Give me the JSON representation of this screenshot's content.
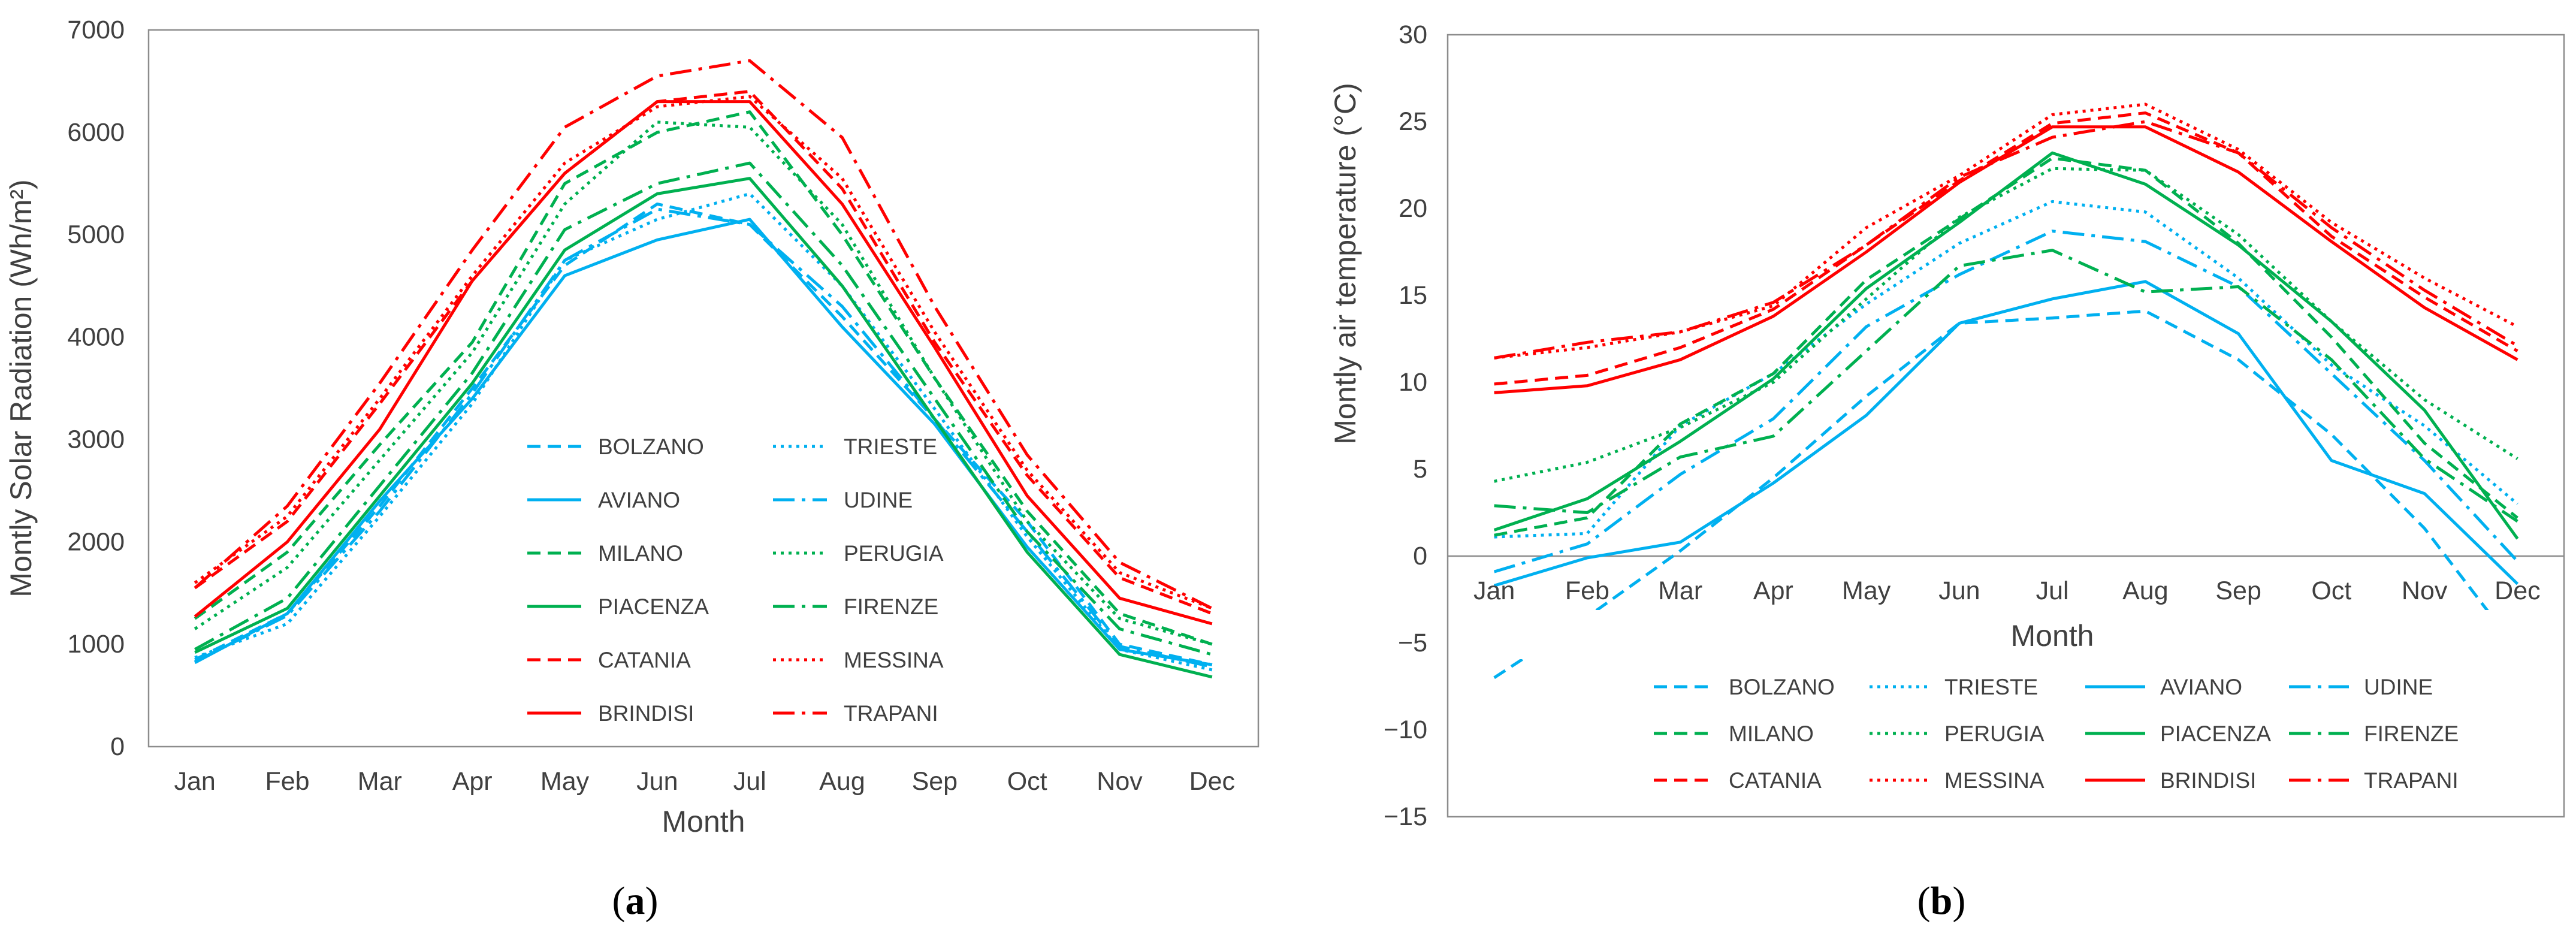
{
  "chart_data": [
    {
      "type": "line",
      "id": "a",
      "panel_label": "(a)",
      "ylabel": "Montly Solar Radiation (Wh/m²)",
      "xlabel": "Month",
      "ylim": [
        0,
        7000
      ],
      "yticks": [
        0,
        1000,
        2000,
        3000,
        4000,
        5000,
        6000,
        7000
      ],
      "categories": [
        "Jan",
        "Feb",
        "Mar",
        "Apr",
        "May",
        "Jun",
        "Jul",
        "Aug",
        "Sep",
        "Oct",
        "Nov",
        "Dec"
      ],
      "grid": false,
      "legend_position": "center-bottom",
      "series": [
        {
          "name": "BOLZANO",
          "color": "#00B0F0",
          "dash": "dashed",
          "values": [
            850,
            1300,
            2350,
            3500,
            4700,
            5300,
            5100,
            4200,
            3200,
            2200,
            1000,
            800
          ]
        },
        {
          "name": "TRIESTE",
          "color": "#00B0F0",
          "dash": "dotted",
          "values": [
            870,
            1200,
            2250,
            3350,
            4750,
            5150,
            5400,
            4500,
            3300,
            2050,
            950,
            750
          ]
        },
        {
          "name": "AVIANO",
          "color": "#00B0F0",
          "dash": "solid",
          "values": [
            820,
            1300,
            2400,
            3400,
            4600,
            4950,
            5150,
            4100,
            3150,
            1950,
            950,
            800
          ]
        },
        {
          "name": "UDINE",
          "color": "#00B0F0",
          "dash": "dashdot",
          "values": [
            830,
            1280,
            2300,
            3450,
            4750,
            5250,
            5100,
            4300,
            3200,
            2100,
            980,
            780
          ]
        },
        {
          "name": "MILANO",
          "color": "#00B050",
          "dash": "dashed",
          "values": [
            1250,
            1900,
            2950,
            3950,
            5500,
            6000,
            6200,
            5000,
            3600,
            2300,
            1300,
            1000
          ]
        },
        {
          "name": "PERUGIA",
          "color": "#00B050",
          "dash": "dotted",
          "values": [
            1150,
            1750,
            2800,
            3850,
            5300,
            6100,
            6050,
            5100,
            3600,
            2200,
            1250,
            1000
          ]
        },
        {
          "name": "PIACENZA",
          "color": "#00B050",
          "dash": "solid",
          "values": [
            920,
            1350,
            2450,
            3550,
            4850,
            5400,
            5550,
            4500,
            3200,
            1900,
            900,
            680
          ]
        },
        {
          "name": "FIRENZE",
          "color": "#00B050",
          "dash": "dashdot",
          "values": [
            950,
            1450,
            2550,
            3650,
            5050,
            5500,
            5700,
            4700,
            3400,
            2100,
            1150,
            900
          ]
        },
        {
          "name": "CATANIA",
          "color": "#FF0000",
          "dash": "dashed",
          "values": [
            1550,
            2200,
            3350,
            4550,
            5600,
            6300,
            6400,
            5450,
            3950,
            2650,
            1650,
            1300
          ]
        },
        {
          "name": "MESSINA",
          "color": "#FF0000",
          "dash": "dotted",
          "values": [
            1600,
            2250,
            3400,
            4600,
            5700,
            6250,
            6350,
            5550,
            4050,
            2700,
            1700,
            1350
          ]
        },
        {
          "name": "BRINDISI",
          "color": "#FF0000",
          "dash": "solid",
          "values": [
            1270,
            2000,
            3100,
            4550,
            5600,
            6300,
            6300,
            5300,
            3900,
            2450,
            1450,
            1200
          ]
        },
        {
          "name": "TRAPANI",
          "color": "#FF0000",
          "dash": "dashdot",
          "values": [
            1550,
            2350,
            3550,
            4850,
            6050,
            6550,
            6700,
            5950,
            4300,
            2850,
            1800,
            1350
          ]
        }
      ]
    },
    {
      "type": "line",
      "id": "b",
      "panel_label": "(b)",
      "ylabel": "Montly air temperature (°C)",
      "xlabel": "Month",
      "ylim": [
        -15,
        30
      ],
      "yticks": [
        -15,
        -10,
        -5,
        0,
        5,
        10,
        15,
        20,
        25,
        30
      ],
      "categories": [
        "Jan",
        "Feb",
        "Mar",
        "Apr",
        "May",
        "Jun",
        "Jul",
        "Aug",
        "Sep",
        "Oct",
        "Nov",
        "Dec"
      ],
      "grid": false,
      "legend_position": "bottom",
      "series": [
        {
          "name": "BOLZANO",
          "color": "#00B0F0",
          "dash": "dashed",
          "values": [
            -7,
            -3.5,
            0.3,
            4.5,
            9.2,
            13.4,
            13.7,
            14.1,
            11.3,
            7,
            1.6,
            -5.4
          ]
        },
        {
          "name": "TRIESTE",
          "color": "#00B0F0",
          "dash": "dotted",
          "values": [
            1.1,
            1.3,
            7.5,
            10.5,
            14.5,
            18,
            20.4,
            19.8,
            16,
            11,
            7.5,
            3
          ]
        },
        {
          "name": "AVIANO",
          "color": "#00B0F0",
          "dash": "solid",
          "values": [
            -1.7,
            -0.1,
            0.8,
            4.2,
            8.1,
            13.4,
            14.8,
            15.8,
            12.8,
            5.5,
            3.6,
            -1.6
          ]
        },
        {
          "name": "UDINE",
          "color": "#00B0F0",
          "dash": "dashdot",
          "values": [
            -0.9,
            0.7,
            4.7,
            7.9,
            13.2,
            16.2,
            18.7,
            18.1,
            15.5,
            10.5,
            5.5,
            -0.3
          ]
        },
        {
          "name": "MILANO",
          "color": "#00B050",
          "dash": "dashed",
          "values": [
            1.2,
            2.2,
            7.6,
            10.5,
            15.9,
            19.4,
            22.9,
            22.2,
            18,
            12.6,
            6.5,
            2.2
          ]
        },
        {
          "name": "PERUGIA",
          "color": "#00B050",
          "dash": "dotted",
          "values": [
            4.3,
            5.4,
            7.4,
            10,
            14.8,
            19.5,
            22.3,
            22.2,
            18.5,
            13.5,
            9,
            5.6
          ]
        },
        {
          "name": "PIACENZA",
          "color": "#00B050",
          "dash": "solid",
          "values": [
            1.5,
            3.3,
            6.6,
            10.2,
            15.4,
            19.2,
            23.2,
            21.4,
            17.9,
            13.5,
            8.4,
            1
          ]
        },
        {
          "name": "FIRENZE",
          "color": "#00B050",
          "dash": "dashdot",
          "values": [
            2.9,
            2.5,
            5.7,
            6.9,
            11.8,
            16.7,
            17.6,
            15.2,
            15.5,
            11.3,
            5.6,
            2
          ]
        },
        {
          "name": "CATANIA",
          "color": "#FF0000",
          "dash": "dashed",
          "values": [
            9.9,
            10.4,
            12,
            14.2,
            17.9,
            21.6,
            24.9,
            25.5,
            23.2,
            18.4,
            14.9,
            11.8
          ]
        },
        {
          "name": "MESSINA",
          "color": "#FF0000",
          "dash": "dotted",
          "values": [
            11.4,
            12,
            12.9,
            14.4,
            18.9,
            21.9,
            25.4,
            26,
            23.4,
            19.2,
            16,
            13.2
          ]
        },
        {
          "name": "BRINDISI",
          "color": "#FF0000",
          "dash": "solid",
          "values": [
            9.4,
            9.8,
            11.3,
            13.8,
            17.5,
            21.5,
            24.7,
            24.7,
            22.1,
            18.1,
            14.3,
            11.3
          ]
        },
        {
          "name": "TRAPANI",
          "color": "#FF0000",
          "dash": "dashdot",
          "values": [
            11.4,
            12.3,
            12.9,
            14.6,
            17.9,
            21.8,
            24.1,
            25,
            23.2,
            18.9,
            15.3,
            12.1
          ]
        }
      ]
    }
  ]
}
